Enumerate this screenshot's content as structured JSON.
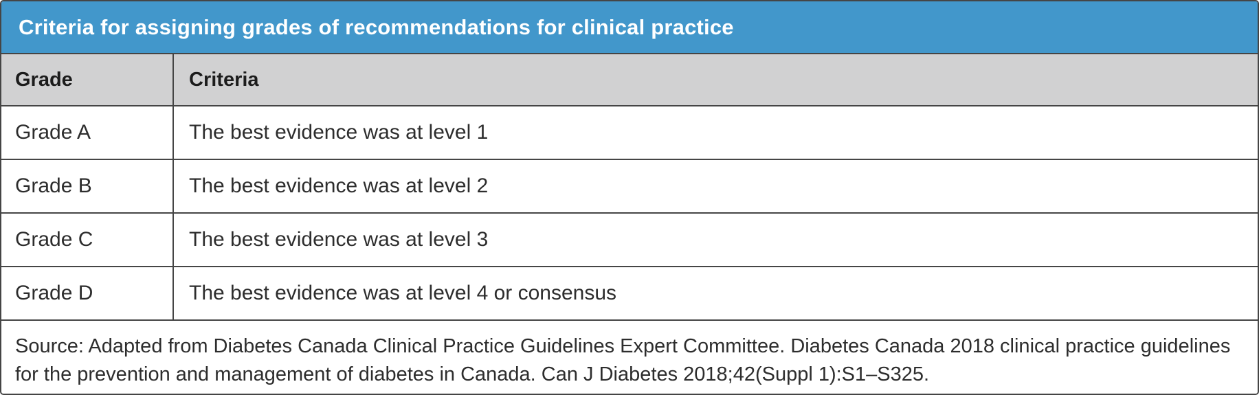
{
  "title": "Criteria for assigning grades of recommendations for clinical practice",
  "colors": {
    "title_bar_bg": "#4297cb",
    "header_row_bg": "#d1d1d2",
    "border_color": "#454545",
    "title_text": "#ffffff",
    "header_text": "#1c1c1c",
    "body_text": "#2d2d2d"
  },
  "table": {
    "columns": {
      "grade": "Grade",
      "criteria": "Criteria"
    },
    "rows": [
      {
        "grade": "Grade A",
        "criteria": "The best evidence was at level 1"
      },
      {
        "grade": "Grade B",
        "criteria": "The best evidence was at level 2"
      },
      {
        "grade": "Grade C",
        "criteria": "The best evidence was at level 3"
      },
      {
        "grade": "Grade D",
        "criteria": "The best evidence was at level 4 or consensus"
      }
    ]
  },
  "source": {
    "line1": "Source: Adapted from Diabetes Canada Clinical Practice Guidelines Expert Committee. Diabetes Canada 2018 clinical practice guidelines",
    "line2": "for the prevention and management of diabetes in Canada. Can J Diabetes 2018;42(Suppl 1):S1–S325."
  }
}
